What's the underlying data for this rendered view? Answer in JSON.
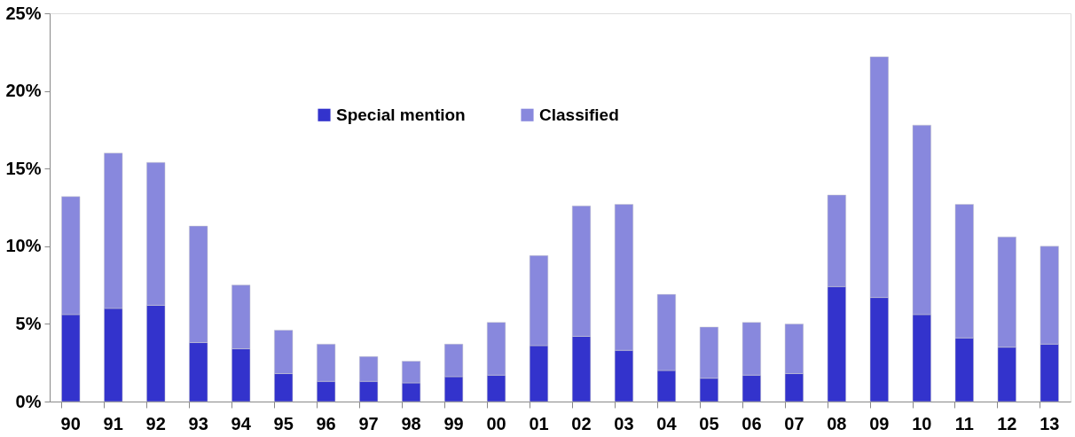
{
  "chart_data": {
    "type": "bar",
    "stacked": true,
    "legend": "top",
    "grid": false,
    "categories": [
      "90",
      "91",
      "92",
      "93",
      "94",
      "95",
      "96",
      "97",
      "98",
      "99",
      "00",
      "01",
      "02",
      "03",
      "04",
      "05",
      "06",
      "07",
      "08",
      "09",
      "10",
      "11",
      "12",
      "13"
    ],
    "series": [
      {
        "name": "Special mention",
        "color": "#3333cc",
        "values": [
          5.6,
          6.0,
          6.2,
          3.8,
          3.4,
          1.8,
          1.3,
          1.3,
          1.2,
          1.6,
          1.7,
          3.6,
          4.2,
          3.3,
          2.0,
          1.5,
          1.7,
          1.8,
          7.4,
          6.7,
          5.6,
          4.1,
          3.5,
          3.7
        ]
      },
      {
        "name": "Classified",
        "color": "#8888dd",
        "values": [
          7.6,
          10.0,
          9.2,
          7.5,
          4.1,
          2.8,
          2.4,
          1.6,
          1.4,
          2.1,
          3.4,
          5.8,
          8.4,
          9.4,
          4.9,
          3.3,
          3.4,
          3.2,
          5.9,
          15.5,
          12.2,
          8.6,
          7.1,
          6.3
        ]
      }
    ],
    "ylim": [
      0,
      25
    ],
    "yticks": [
      {
        "value": 0,
        "label": "0%"
      },
      {
        "value": 5,
        "label": "5%"
      },
      {
        "value": 10,
        "label": "10%"
      },
      {
        "value": 15,
        "label": "15%"
      },
      {
        "value": 20,
        "label": "20%"
      },
      {
        "value": 25,
        "label": "25%"
      }
    ]
  }
}
